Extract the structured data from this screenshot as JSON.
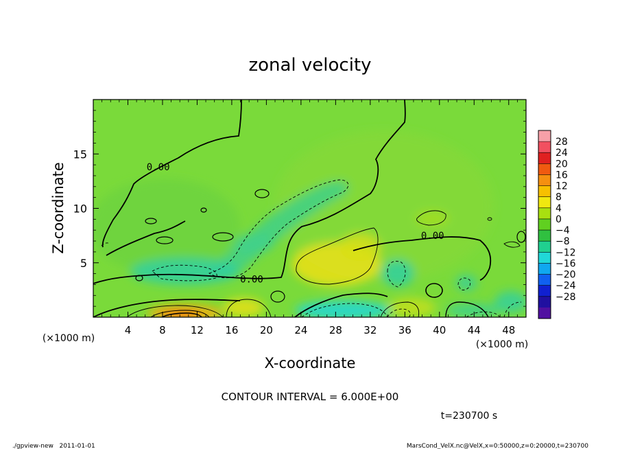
{
  "chart_data": {
    "type": "heatmap",
    "title": "zonal velocity",
    "xlabel": "X-coordinate",
    "ylabel": "Z-coordinate",
    "x_unit_label": "(×1000 m)",
    "y_unit_label": "(×1000 m)",
    "xlim": [
      0,
      50
    ],
    "ylim": [
      0,
      20
    ],
    "xticks": [
      4,
      8,
      12,
      16,
      20,
      24,
      28,
      32,
      36,
      40,
      44,
      48
    ],
    "yticks": [
      5,
      10,
      15
    ],
    "colorbar": {
      "labels": [
        28,
        24,
        20,
        16,
        12,
        8,
        4,
        0,
        -4,
        -8,
        -12,
        -16,
        -20,
        -24,
        -28
      ],
      "colors": [
        "#f7a0a8",
        "#f25060",
        "#e02020",
        "#f05a10",
        "#f59010",
        "#f7c000",
        "#f0e810",
        "#a8e010",
        "#60d020",
        "#30c040",
        "#20d090",
        "#20d8d8",
        "#10a8f0",
        "#1060f0",
        "#1020d0",
        "#2010a0",
        "#5010a0"
      ]
    },
    "contour_labels": [
      {
        "text": "0.00",
        "x": 7.5,
        "y": 13.5
      },
      {
        "text": "0.00",
        "x": 18.3,
        "y": 3.2
      },
      {
        "text": "0.00",
        "x": 39.2,
        "y": 7.2
      }
    ],
    "features": [
      {
        "name": "near-surface maximum",
        "x": 10.5,
        "z": 0.3,
        "value": 14
      },
      {
        "name": "positive core",
        "x": 28.5,
        "z": 4.0,
        "value": 10
      },
      {
        "name": "negative band",
        "x": 18.0,
        "z": 7.0,
        "value": -7
      },
      {
        "name": "surface negative core",
        "x": 29.0,
        "z": 0.3,
        "value": -10
      }
    ]
  },
  "contour_interval_label": "CONTOUR INTERVAL = 6.000E+00",
  "time_label": "t=230700 s",
  "footer_left": "./gpview-new   2011-01-01",
  "footer_right": "MarsCond_VelX.nc@VelX,x=0:50000,z=0:20000,t=230700",
  "colors": {
    "background_field": "#7ada3a",
    "contour_line": "#000000"
  }
}
